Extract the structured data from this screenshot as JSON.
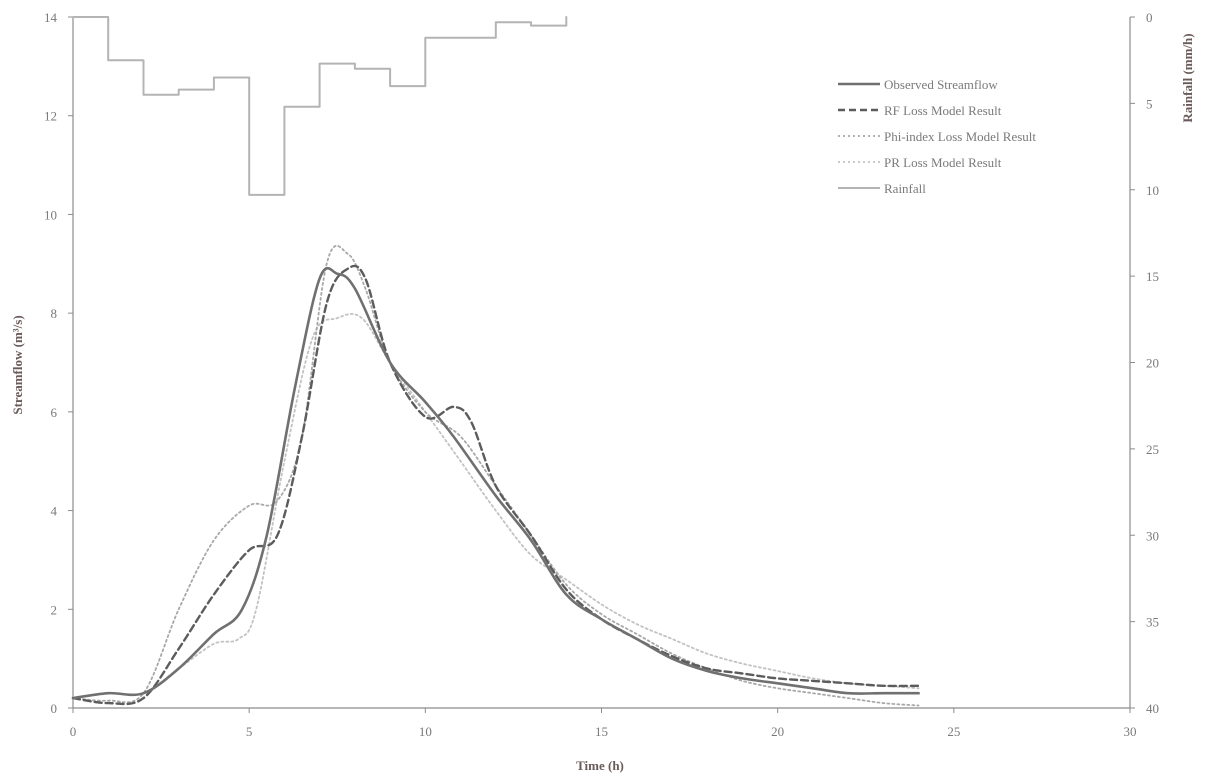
{
  "chart_data": {
    "type": "line",
    "title": "",
    "xlabel": "Time (h)",
    "ylabel": "Streamflow (m³/s)",
    "y2label": "Rainfall (mm/h)",
    "xlim": [
      0,
      30
    ],
    "ylim": [
      0,
      14
    ],
    "y2lim": [
      0,
      40
    ],
    "y2_inverted": true,
    "x_ticks": [
      0,
      5,
      10,
      15,
      20,
      25,
      30
    ],
    "y_ticks": [
      0,
      2,
      4,
      6,
      8,
      10,
      12,
      14
    ],
    "y2_ticks": [
      0,
      5,
      10,
      15,
      20,
      25,
      30,
      35,
      40
    ],
    "grid": false,
    "legend_position": "top-right",
    "series": [
      {
        "name": "Observed Streamflow",
        "axis": "left",
        "style": "solid",
        "color": "#707070",
        "x": [
          0,
          1,
          2,
          3,
          4,
          4.8,
          5.5,
          6.3,
          7,
          7.5,
          8,
          9,
          10,
          10.8,
          12,
          13,
          14,
          15,
          16,
          17,
          18,
          19,
          20,
          21,
          22,
          23,
          24
        ],
        "y": [
          0.2,
          0.3,
          0.3,
          0.8,
          1.5,
          2.0,
          3.5,
          6.5,
          8.7,
          8.8,
          8.5,
          7.0,
          6.2,
          5.5,
          4.3,
          3.4,
          2.3,
          1.8,
          1.4,
          1.0,
          0.75,
          0.6,
          0.5,
          0.4,
          0.3,
          0.3,
          0.3
        ]
      },
      {
        "name": "RF Loss Model Result",
        "axis": "left",
        "style": "dashed",
        "color": "#5c5c5c",
        "x": [
          0,
          1,
          2,
          3,
          4,
          5,
          5.8,
          6.5,
          7.2,
          7.8,
          8.3,
          9,
          10,
          10.8,
          11.3,
          12,
          13,
          14,
          15,
          16,
          17,
          18,
          19,
          20,
          21,
          22,
          23,
          24
        ],
        "y": [
          0.2,
          0.1,
          0.2,
          1.2,
          2.3,
          3.2,
          3.5,
          5.5,
          8.2,
          8.9,
          8.7,
          7.0,
          5.9,
          6.1,
          5.8,
          4.5,
          3.5,
          2.4,
          1.8,
          1.4,
          1.05,
          0.8,
          0.7,
          0.6,
          0.55,
          0.5,
          0.45,
          0.45
        ]
      },
      {
        "name": "Phi-index Loss Model Result",
        "axis": "left",
        "style": "dotted",
        "color": "#a8a8a8",
        "x": [
          0,
          1,
          2,
          3,
          4,
          5,
          5.8,
          6.5,
          7.2,
          7.8,
          8.3,
          9,
          10,
          11,
          12,
          13,
          14,
          15,
          16,
          17,
          18,
          19,
          20,
          21,
          22,
          23,
          24
        ],
        "y": [
          0.2,
          0.15,
          0.3,
          2.0,
          3.4,
          4.1,
          4.2,
          5.5,
          9.0,
          9.2,
          8.5,
          7.0,
          6.0,
          5.5,
          4.5,
          3.5,
          2.5,
          1.9,
          1.5,
          1.1,
          0.8,
          0.55,
          0.4,
          0.3,
          0.2,
          0.1,
          0.05
        ]
      },
      {
        "name": "PR Loss Model Result",
        "axis": "left",
        "style": "dotted",
        "color": "#c2c2c2",
        "x": [
          0,
          1,
          2,
          3,
          4,
          4.7,
          5.2,
          6,
          6.8,
          7.5,
          8.2,
          9,
          10,
          11,
          12,
          13,
          14,
          15,
          16,
          17,
          18,
          19,
          20,
          21,
          22,
          23,
          24
        ],
        "y": [
          0.2,
          0.3,
          0.3,
          0.8,
          1.3,
          1.4,
          2.0,
          5.0,
          7.5,
          7.9,
          7.9,
          7.0,
          6.0,
          5.0,
          4.0,
          3.1,
          2.6,
          2.1,
          1.7,
          1.4,
          1.1,
          0.9,
          0.75,
          0.6,
          0.5,
          0.45,
          0.4
        ]
      },
      {
        "name": "Rainfall",
        "axis": "right",
        "style": "step",
        "color": "#b4b4b4",
        "x": [
          0,
          1,
          2,
          3,
          4,
          5,
          6,
          7,
          8,
          9,
          10,
          11,
          12,
          13,
          14
        ],
        "y": [
          0,
          2.5,
          4.5,
          4.2,
          3.5,
          10.3,
          5.2,
          2.7,
          3.0,
          4.0,
          1.2,
          1.2,
          0.3,
          0.5,
          0
        ]
      }
    ]
  }
}
